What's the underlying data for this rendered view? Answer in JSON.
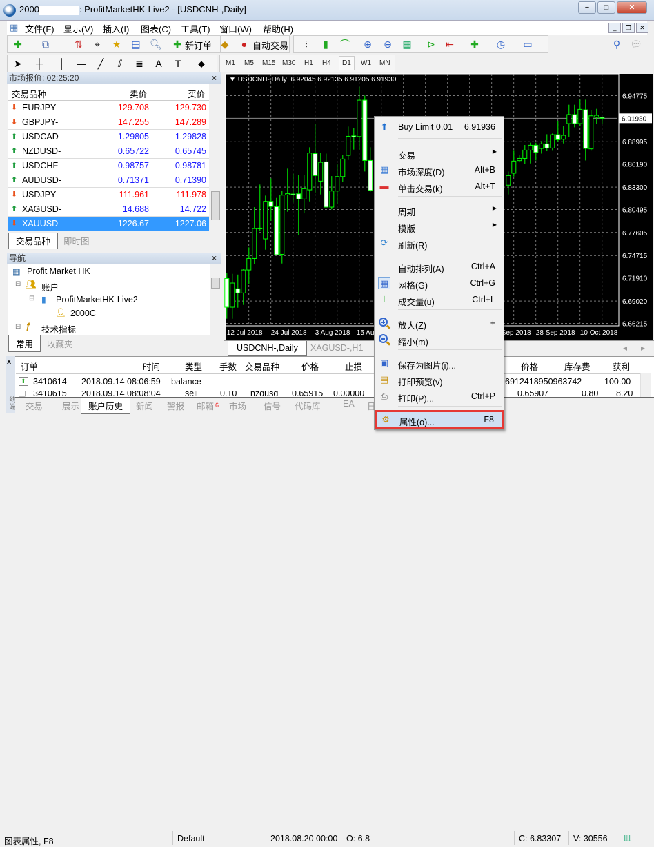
{
  "window": {
    "title_prefix": "2000",
    "title_suffix": ": ProfitMarketHK-Live2 - [USDCNH-,Daily]",
    "min": "−",
    "max": "□",
    "close": "✕"
  },
  "menubar": [
    "文件(F)",
    "显示(V)",
    "插入(I)",
    "图表(C)",
    "工具(T)",
    "窗口(W)",
    "帮助(H)"
  ],
  "toolbar": {
    "new_order": "新订单",
    "auto_trading": "自动交易",
    "timeframes": [
      "M1",
      "M5",
      "M15",
      "M30",
      "H1",
      "H4",
      "D1",
      "W1",
      "MN"
    ],
    "active_timeframe": "D1"
  },
  "market_watch": {
    "title": "市场报价: 02:25:20",
    "columns": [
      "交易品种",
      "卖价",
      "买价"
    ],
    "rows": [
      {
        "symbol": "EURJPY-",
        "bid": "129.708",
        "ask": "129.730",
        "dir": "down"
      },
      {
        "symbol": "GBPJPY-",
        "bid": "147.255",
        "ask": "147.289",
        "dir": "down"
      },
      {
        "symbol": "USDCAD-",
        "bid": "1.29805",
        "ask": "1.29828",
        "dir": "up"
      },
      {
        "symbol": "NZDUSD-",
        "bid": "0.65722",
        "ask": "0.65745",
        "dir": "up"
      },
      {
        "symbol": "USDCHF-",
        "bid": "0.98757",
        "ask": "0.98781",
        "dir": "up"
      },
      {
        "symbol": "AUDUSD-",
        "bid": "0.71371",
        "ask": "0.71390",
        "dir": "up"
      },
      {
        "symbol": "USDJPY-",
        "bid": "111.961",
        "ask": "111.978",
        "dir": "down"
      },
      {
        "symbol": "XAGUSD-",
        "bid": "14.688",
        "ask": "14.722",
        "dir": "up"
      },
      {
        "symbol": "XAUUSD-",
        "bid": "1226.67",
        "ask": "1227.06",
        "dir": "down",
        "selected": true
      }
    ],
    "tabs": [
      "交易品种",
      "即时图"
    ]
  },
  "navigator": {
    "title": "导航",
    "items": [
      "Profit Market HK",
      "账户",
      "ProfitMarketHK-Live2",
      "2000C",
      "技术指标"
    ],
    "tabs": [
      "常用",
      "收藏夹"
    ]
  },
  "chart": {
    "symbol_line": "USDCNH-,Daily",
    "ohlc_line": "6.92045 6.92135 6.91205 6.91930",
    "current_price": "6.91930",
    "price_labels": [
      "6.94775",
      "6.88995",
      "6.86190",
      "6.83300",
      "6.80495",
      "6.77605",
      "6.74715",
      "6.71910",
      "6.69020",
      "6.66215"
    ],
    "date_labels": [
      "12 Jul 2018",
      "24 Jul 2018",
      "3 Aug 2018",
      "15 Aug 2018",
      "",
      "",
      "Sep 2018",
      "28 Sep 2018",
      "10 Oct 2018"
    ],
    "tabs": [
      "USDCNH-,Daily",
      "XAGUSD-,H1"
    ],
    "colors": {
      "bg": "#000000",
      "candle": "#00ff00",
      "bear_body": "#ffffff",
      "grid": "#c0c0c0"
    }
  },
  "chart_data": {
    "type": "candlestick",
    "ylim": [
      6.6608,
      6.9741
    ],
    "format": "[open,high,low,close]",
    "candles": [
      [
        6.7184,
        6.7257,
        6.668,
        6.6824
      ],
      [
        6.6824,
        6.7242,
        6.668,
        6.7127
      ],
      [
        6.7055,
        6.7233,
        6.6818,
        6.7003
      ],
      [
        6.7003,
        6.73,
        6.6853,
        6.7291
      ],
      [
        6.7291,
        6.7574,
        6.7112,
        6.7435
      ],
      [
        6.7435,
        6.8079,
        6.7366,
        6.781
      ],
      [
        6.781,
        6.8362,
        6.7776,
        6.7816
      ],
      [
        6.7681,
        6.8223,
        6.7545,
        6.8151
      ],
      [
        6.8151,
        6.8439,
        6.7906,
        6.8087
      ],
      [
        6.8084,
        6.8194,
        6.7482,
        6.7482
      ],
      [
        6.7487,
        6.8281,
        6.7372,
        6.8229
      ],
      [
        6.8232,
        6.8561,
        6.8021,
        6.8249
      ],
      [
        6.8243,
        6.8497,
        6.8137,
        6.8232
      ],
      [
        6.8246,
        6.8483,
        6.7733,
        6.818
      ],
      [
        6.818,
        6.8483,
        6.8001,
        6.831
      ],
      [
        6.8295,
        6.8829,
        6.8151,
        6.8757
      ],
      [
        6.875,
        6.9126,
        6.8252,
        6.8474
      ],
      [
        6.8405,
        6.8757,
        6.8238,
        6.8641
      ],
      [
        6.8647,
        6.875,
        6.8079,
        6.8079
      ],
      [
        6.8079,
        6.8468,
        6.805,
        6.8281
      ],
      [
        6.8281,
        6.8618,
        6.8116,
        6.8462
      ],
      [
        6.8462,
        6.8737,
        6.8396,
        6.8682
      ],
      [
        6.8728,
        6.9089,
        6.867,
        6.8967
      ],
      [
        6.8972,
        6.9074,
        6.88,
        6.8958
      ],
      [
        6.8964,
        6.9588,
        6.88,
        6.942
      ],
      [
        6.942,
        6.9478,
        6.8526,
        6.8664
      ],
      [
        6.8664,
        6.8829,
        6.8272,
        6.8289
      ],
      null,
      null,
      null,
      null,
      null,
      null,
      null,
      null,
      null,
      null,
      null,
      null,
      null,
      null,
      null,
      null,
      null,
      null,
      null,
      null,
      null,
      null,
      null,
      null,
      [
        6.8354,
        6.8525,
        6.8238,
        6.8474
      ],
      [
        6.8504,
        6.8786,
        6.8462,
        6.8656
      ],
      [
        6.8662,
        6.8728,
        6.8641,
        6.869
      ],
      [
        6.869,
        6.8858,
        6.8621,
        6.8794
      ],
      [
        6.8794,
        6.8887,
        6.8627,
        6.8855
      ],
      [
        6.8855,
        6.8887,
        6.8664,
        6.8765
      ],
      [
        6.8815,
        6.8907,
        6.875,
        6.8872
      ],
      [
        6.8872,
        6.8993,
        6.878,
        6.882
      ],
      [
        6.882,
        6.9002,
        6.8786,
        6.8987
      ],
      [
        6.8987,
        6.9161,
        6.8901,
        6.8924
      ],
      [
        6.893,
        6.9097,
        6.8878,
        6.8979
      ],
      [
        6.9126,
        6.9363,
        6.8958,
        6.9239
      ],
      [
        6.9239,
        6.9363,
        6.908,
        6.9126
      ],
      [
        6.9126,
        6.9426,
        6.9097,
        6.9305
      ],
      [
        6.9299,
        6.9426,
        6.8664,
        6.8815
      ],
      [
        6.8809,
        6.9299,
        6.8786,
        6.9224
      ],
      [
        6.9205,
        6.9311,
        6.9126,
        6.923
      ],
      [
        6.92045,
        6.92135,
        6.91205,
        6.9193
      ]
    ]
  },
  "context_menu": {
    "buy_limit": "Buy Limit 0.01",
    "buy_limit_price": "6.91936",
    "items": [
      {
        "label": "交易",
        "sub": true
      },
      {
        "label": "市场深度(D)",
        "shortcut": "Alt+B"
      },
      {
        "label": "单击交易(k)",
        "shortcut": "Alt+T"
      },
      {
        "label": "周期",
        "sub": true
      },
      {
        "label": "模版",
        "sub": true
      },
      {
        "label": "刷新(R)"
      },
      {
        "label": "自动排列(A)",
        "shortcut": "Ctrl+A"
      },
      {
        "label": "网格(G)",
        "shortcut": "Ctrl+G"
      },
      {
        "label": "成交量(u)",
        "shortcut": "Ctrl+L"
      },
      {
        "label": "放大(Z)",
        "shortcut": "+"
      },
      {
        "label": "缩小(m)",
        "shortcut": "-"
      },
      {
        "label": "保存为图片(i)..."
      },
      {
        "label": "打印预览(v)"
      },
      {
        "label": "打印(P)...",
        "shortcut": "Ctrl+P"
      },
      {
        "label": "属性(o)...",
        "shortcut": "F8",
        "highlighted": true
      }
    ]
  },
  "terminal": {
    "columns": [
      "订单",
      "时间",
      "类型",
      "手数",
      "交易品种",
      "价格",
      "止损",
      "价格",
      "库存费",
      "获利"
    ],
    "rows": [
      {
        "order": "3410614",
        "time": "2018.09.14 08:06:59",
        "type": "balance",
        "comment": "6912418950963742",
        "profit": "100.00"
      },
      {
        "order": "3410615",
        "time": "2018.09.14 08:08:04",
        "type": "sell",
        "lots": "0.10",
        "symbol": "nzdusd",
        "price": "0.65915",
        "sl": "0.00000",
        "close_price": "0.65907",
        "swap": "0.80",
        "profit": "8.20"
      }
    ],
    "side_label": "终端",
    "tabs": [
      "交易",
      "展示",
      "账户历史",
      "新闻",
      "警报",
      "邮箱",
      "市场",
      "信号",
      "代码库",
      "EA",
      "日志"
    ],
    "mail_badge": "6",
    "active_tab": "账户历史"
  },
  "statusbar": {
    "hint": "图表属性, F8",
    "profile": "Default",
    "datetime": "2018.08.20 00:00",
    "open": "O: 6.8",
    "close": "C: 6.83307",
    "volume": "V: 30556"
  }
}
